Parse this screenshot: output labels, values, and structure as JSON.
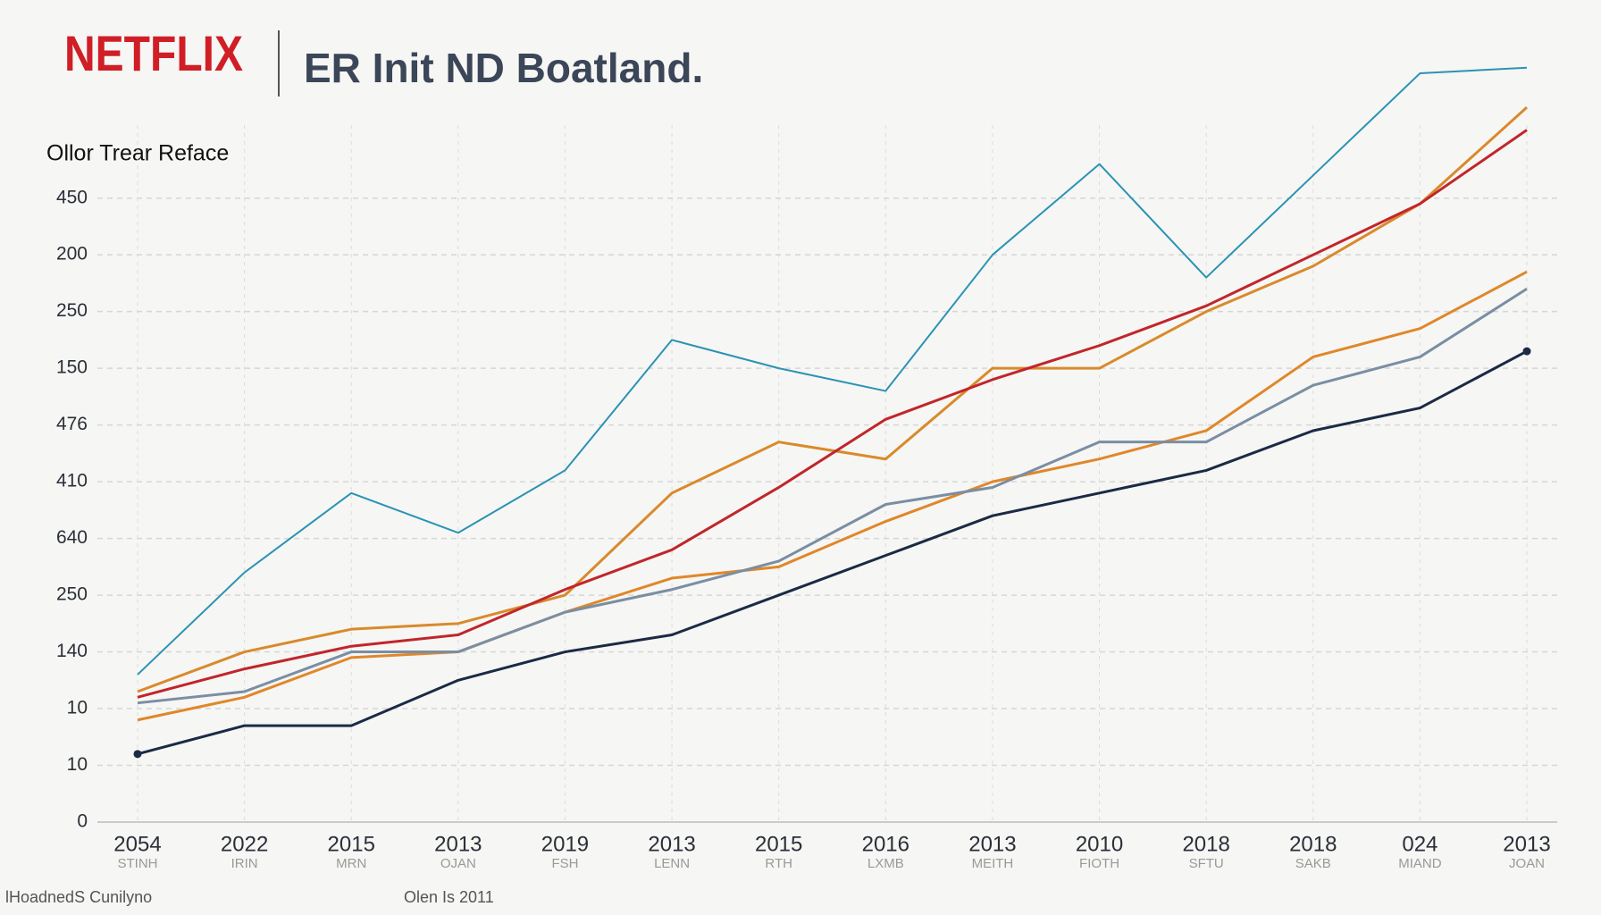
{
  "brand": "NETFLIX",
  "footer": {
    "left": "lHoadnedS Cunilyno",
    "center": "Olen Is 2011"
  },
  "chart_data": {
    "type": "line",
    "title": "ER Init ND Boatland.",
    "y_label": "Ollor Trear Reface",
    "categories": [
      "2054",
      "2022",
      "2015",
      "2013",
      "2019",
      "2013",
      "2015",
      "2016",
      "2013",
      "2010",
      "2018",
      "2018",
      "024",
      "2013"
    ],
    "sublabels": [
      "STINH",
      "IRIN",
      "MRN",
      "OJAN",
      "FSH",
      "LENN",
      "RTH",
      "LXMB",
      "MEITH",
      "FIOTH",
      "SFTU",
      "SAKB",
      "MIAND",
      "JOAN"
    ],
    "ylim": [
      0,
      13.5
    ],
    "yticks": [
      {
        "value": 0,
        "label": "0"
      },
      {
        "value": 1,
        "label": "10"
      },
      {
        "value": 2,
        "label": "10"
      },
      {
        "value": 3,
        "label": "140"
      },
      {
        "value": 4,
        "label": "250"
      },
      {
        "value": 5,
        "label": "640"
      },
      {
        "value": 6,
        "label": "410"
      },
      {
        "value": 7,
        "label": "476"
      },
      {
        "value": 8,
        "label": "150"
      },
      {
        "value": 9,
        "label": "250"
      },
      {
        "value": 10,
        "label": "200"
      },
      {
        "value": 11,
        "label": "450"
      }
    ],
    "grid": true,
    "series": [
      {
        "color": "#2a93b3",
        "values": [
          2.6,
          4.4,
          5.8,
          5.1,
          6.2,
          8.5,
          8.0,
          7.6,
          10.0,
          11.6,
          9.6,
          11.4,
          13.2,
          13.3
        ]
      },
      {
        "color": "#d98a2b",
        "values": [
          2.3,
          3.0,
          3.4,
          3.5,
          4.0,
          5.8,
          6.7,
          6.4,
          8.0,
          8.0,
          9.0,
          9.8,
          10.9,
          12.6
        ]
      },
      {
        "color": "#c0262b",
        "values": [
          2.2,
          2.7,
          3.1,
          3.3,
          4.1,
          4.8,
          5.9,
          7.1,
          7.8,
          8.4,
          9.1,
          10.0,
          10.9,
          12.2
        ]
      },
      {
        "color": "#e0872a",
        "values": [
          1.8,
          2.2,
          2.9,
          3.0,
          3.7,
          4.3,
          4.5,
          5.3,
          6.0,
          6.4,
          6.9,
          8.2,
          8.7,
          9.7
        ]
      },
      {
        "color": "#7a8ea3",
        "values": [
          2.1,
          2.3,
          3.0,
          3.0,
          3.7,
          4.1,
          4.6,
          5.6,
          5.9,
          6.7,
          6.7,
          7.7,
          8.2,
          9.4
        ]
      },
      {
        "color": "#1b2a45",
        "values": [
          1.2,
          1.7,
          1.7,
          2.5,
          3.0,
          3.3,
          4.0,
          4.7,
          5.4,
          5.8,
          6.2,
          6.9,
          7.3,
          8.3
        ]
      }
    ]
  }
}
